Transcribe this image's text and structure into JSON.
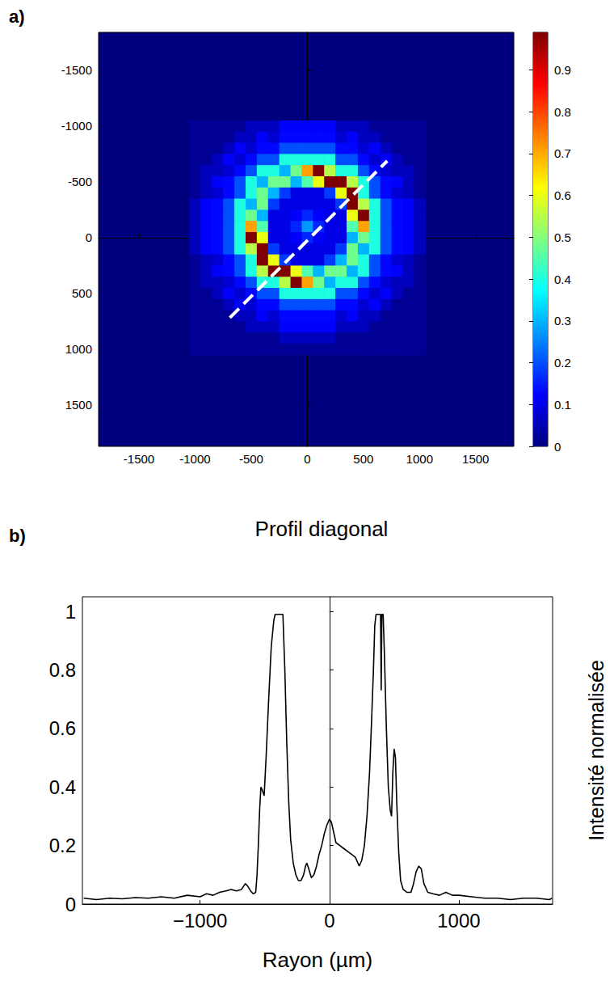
{
  "chart_data": [
    {
      "type": "heatmap",
      "panel": "a)",
      "xlim": [
        -1860,
        1840
      ],
      "ylim": [
        -1840,
        1870
      ],
      "xticks": [
        -1500,
        -1000,
        -500,
        0,
        500,
        1000,
        1500
      ],
      "yticks": [
        -1500,
        -1000,
        -500,
        0,
        500,
        1000,
        1500
      ],
      "x": [
        -1000,
        -900,
        -800,
        -700,
        -600,
        -500,
        -400,
        -300,
        -200,
        -100,
        0,
        100,
        200,
        300,
        400,
        500,
        600,
        700,
        800,
        900,
        1000
      ],
      "y": [
        -1000,
        -900,
        -800,
        -700,
        -600,
        -500,
        -400,
        -300,
        -200,
        -100,
        0,
        100,
        200,
        300,
        400,
        500,
        600,
        700,
        800,
        900,
        1000
      ],
      "values": [
        [
          0.02,
          0.02,
          0.02,
          0.02,
          0.02,
          0.06,
          0.06,
          0.06,
          0.12,
          0.12,
          0.12,
          0.12,
          0.12,
          0.06,
          0.06,
          0.06,
          0.02,
          0.02,
          0.02,
          0.02,
          0.02
        ],
        [
          0.02,
          0.02,
          0.02,
          0.02,
          0.06,
          0.06,
          0.12,
          0.08,
          0.13,
          0.13,
          0.13,
          0.13,
          0.13,
          0.08,
          0.12,
          0.06,
          0.06,
          0.02,
          0.02,
          0.02,
          0.02
        ],
        [
          0.02,
          0.02,
          0.02,
          0.06,
          0.12,
          0.08,
          0.13,
          0.13,
          0.2,
          0.2,
          0.2,
          0.2,
          0.2,
          0.13,
          0.13,
          0.08,
          0.12,
          0.06,
          0.02,
          0.02,
          0.02
        ],
        [
          0.02,
          0.02,
          0.06,
          0.12,
          0.08,
          0.13,
          0.2,
          0.2,
          0.4,
          0.4,
          0.4,
          0.4,
          0.4,
          0.2,
          0.2,
          0.13,
          0.08,
          0.12,
          0.06,
          0.02,
          0.02
        ],
        [
          0.02,
          0.06,
          0.06,
          0.08,
          0.13,
          0.2,
          0.4,
          0.4,
          0.3,
          0.48,
          0.71,
          0.99,
          0.55,
          0.4,
          0.4,
          0.2,
          0.13,
          0.08,
          0.06,
          0.06,
          0.02
        ],
        [
          0.02,
          0.06,
          0.12,
          0.13,
          0.2,
          0.4,
          0.3,
          0.48,
          0.48,
          0.3,
          0.45,
          0.6,
          0.99,
          0.99,
          0.55,
          0.4,
          0.2,
          0.13,
          0.12,
          0.06,
          0.02
        ],
        [
          0.02,
          0.06,
          0.08,
          0.13,
          0.2,
          0.4,
          0.48,
          0.3,
          0.18,
          0.1,
          0.1,
          0.1,
          0.18,
          0.6,
          0.99,
          0.4,
          0.2,
          0.13,
          0.08,
          0.06,
          0.02
        ],
        [
          0.06,
          0.12,
          0.13,
          0.2,
          0.4,
          0.3,
          0.48,
          0.18,
          0.1,
          0.1,
          0.1,
          0.1,
          0.1,
          0.18,
          0.99,
          0.55,
          0.4,
          0.2,
          0.13,
          0.12,
          0.06
        ],
        [
          0.06,
          0.12,
          0.13,
          0.2,
          0.4,
          0.48,
          0.3,
          0.1,
          0.1,
          0.12,
          0.16,
          0.12,
          0.1,
          0.1,
          0.6,
          0.99,
          0.4,
          0.2,
          0.13,
          0.12,
          0.06
        ],
        [
          0.06,
          0.12,
          0.13,
          0.2,
          0.4,
          0.71,
          0.45,
          0.1,
          0.1,
          0.16,
          0.27,
          0.16,
          0.1,
          0.1,
          0.45,
          0.71,
          0.4,
          0.2,
          0.13,
          0.12,
          0.06
        ],
        [
          0.06,
          0.12,
          0.13,
          0.2,
          0.4,
          0.99,
          0.6,
          0.1,
          0.1,
          0.12,
          0.16,
          0.12,
          0.1,
          0.1,
          0.3,
          0.48,
          0.4,
          0.2,
          0.13,
          0.12,
          0.06
        ],
        [
          0.06,
          0.12,
          0.13,
          0.2,
          0.4,
          0.55,
          0.99,
          0.18,
          0.1,
          0.1,
          0.1,
          0.1,
          0.1,
          0.18,
          0.48,
          0.3,
          0.4,
          0.2,
          0.13,
          0.12,
          0.06
        ],
        [
          0.02,
          0.06,
          0.08,
          0.13,
          0.2,
          0.4,
          0.99,
          0.6,
          0.18,
          0.1,
          0.1,
          0.1,
          0.18,
          0.3,
          0.48,
          0.4,
          0.2,
          0.13,
          0.08,
          0.06,
          0.02
        ],
        [
          0.02,
          0.06,
          0.12,
          0.13,
          0.2,
          0.4,
          0.55,
          0.99,
          0.99,
          0.6,
          0.45,
          0.3,
          0.48,
          0.48,
          0.3,
          0.4,
          0.2,
          0.13,
          0.12,
          0.06,
          0.02
        ],
        [
          0.02,
          0.06,
          0.06,
          0.08,
          0.13,
          0.2,
          0.4,
          0.4,
          0.55,
          0.99,
          0.71,
          0.48,
          0.3,
          0.4,
          0.4,
          0.2,
          0.13,
          0.08,
          0.06,
          0.06,
          0.02
        ],
        [
          0.02,
          0.02,
          0.06,
          0.12,
          0.08,
          0.13,
          0.2,
          0.2,
          0.4,
          0.4,
          0.4,
          0.4,
          0.4,
          0.2,
          0.2,
          0.13,
          0.08,
          0.12,
          0.06,
          0.02,
          0.02
        ],
        [
          0.02,
          0.02,
          0.02,
          0.06,
          0.12,
          0.08,
          0.13,
          0.13,
          0.2,
          0.2,
          0.2,
          0.2,
          0.2,
          0.13,
          0.13,
          0.08,
          0.12,
          0.06,
          0.02,
          0.02,
          0.02
        ],
        [
          0.02,
          0.02,
          0.02,
          0.02,
          0.06,
          0.06,
          0.12,
          0.08,
          0.13,
          0.13,
          0.13,
          0.13,
          0.13,
          0.08,
          0.12,
          0.06,
          0.06,
          0.02,
          0.02,
          0.02,
          0.02
        ],
        [
          0.02,
          0.02,
          0.02,
          0.02,
          0.02,
          0.06,
          0.06,
          0.06,
          0.12,
          0.12,
          0.12,
          0.12,
          0.12,
          0.06,
          0.06,
          0.06,
          0.02,
          0.02,
          0.02,
          0.02,
          0.02
        ],
        [
          0.02,
          0.02,
          0.02,
          0.02,
          0.02,
          0.02,
          0.02,
          0.02,
          0.06,
          0.06,
          0.06,
          0.06,
          0.06,
          0.02,
          0.02,
          0.02,
          0.02,
          0.02,
          0.02,
          0.02,
          0.02
        ],
        [
          0.02,
          0.02,
          0.02,
          0.02,
          0.02,
          0.02,
          0.02,
          0.02,
          0.02,
          0.02,
          0.02,
          0.02,
          0.02,
          0.02,
          0.02,
          0.02,
          0.02,
          0.02,
          0.02,
          0.02,
          0.02
        ]
      ],
      "colorbar": {
        "range": [
          0,
          0.99
        ],
        "ticks": [
          0,
          0.1,
          0.2,
          0.3,
          0.4,
          0.5,
          0.6,
          0.7,
          0.8,
          0.9
        ]
      },
      "profile_line": {
        "x": [
          -690,
          712
        ],
        "y": [
          717,
          -688
        ],
        "color": "#ffffff",
        "line_style": "dashed"
      }
    },
    {
      "type": "line",
      "panel": "b)",
      "title": "Profil diagonal",
      "xlabel": "Rayon (µm)",
      "ylabel": "Intensité normalisée",
      "xlim": [
        -1910,
        1725
      ],
      "ylim": [
        0,
        1.05
      ],
      "xticks": [
        {
          "value": -1000,
          "label": "−1000"
        },
        0,
        1000
      ],
      "yticks": [
        0,
        0.2,
        0.4,
        0.6,
        0.8,
        1
      ],
      "color": "#000000",
      "line_style": "solid",
      "x": [
        -1900,
        -1800,
        -1700,
        -1600,
        -1500,
        -1400,
        -1300,
        -1200,
        -1100,
        -1000,
        -950,
        -900,
        -850,
        -800,
        -760,
        -720,
        -680,
        -650,
        -630,
        -610,
        -590,
        -570,
        -560,
        -550,
        -540,
        -530,
        -520,
        -505,
        -490,
        -470,
        -450,
        -430,
        -420,
        -400,
        -380,
        -360,
        -345,
        -330,
        -315,
        -300,
        -280,
        -260,
        -240,
        -220,
        -200,
        -185,
        -175,
        -160,
        -140,
        -120,
        -100,
        -80,
        -60,
        -40,
        -20,
        0,
        15,
        30,
        50,
        80,
        110,
        140,
        170,
        200,
        230,
        250,
        270,
        290,
        310,
        325,
        340,
        350,
        360,
        380,
        395,
        400,
        405,
        415,
        425,
        440,
        455,
        470,
        480,
        490,
        500,
        510,
        520,
        535,
        550,
        570,
        600,
        630,
        650,
        670,
        690,
        710,
        730,
        760,
        800,
        850,
        900,
        950,
        1000,
        1100,
        1200,
        1300,
        1400,
        1500,
        1600,
        1700,
        1720
      ],
      "values": [
        0.02,
        0.015,
        0.02,
        0.018,
        0.022,
        0.02,
        0.025,
        0.02,
        0.03,
        0.025,
        0.035,
        0.03,
        0.04,
        0.045,
        0.05,
        0.045,
        0.05,
        0.07,
        0.06,
        0.045,
        0.035,
        0.04,
        0.1,
        0.2,
        0.32,
        0.4,
        0.39,
        0.37,
        0.5,
        0.7,
        0.88,
        0.97,
        0.99,
        0.99,
        0.99,
        0.99,
        0.8,
        0.55,
        0.35,
        0.22,
        0.14,
        0.1,
        0.08,
        0.08,
        0.1,
        0.13,
        0.14,
        0.12,
        0.09,
        0.1,
        0.13,
        0.17,
        0.2,
        0.24,
        0.27,
        0.29,
        0.28,
        0.25,
        0.21,
        0.2,
        0.19,
        0.18,
        0.17,
        0.16,
        0.13,
        0.15,
        0.2,
        0.3,
        0.45,
        0.62,
        0.8,
        0.95,
        0.99,
        0.99,
        0.99,
        0.73,
        0.99,
        0.99,
        0.85,
        0.6,
        0.4,
        0.32,
        0.3,
        0.45,
        0.53,
        0.5,
        0.35,
        0.18,
        0.08,
        0.05,
        0.04,
        0.04,
        0.07,
        0.11,
        0.13,
        0.12,
        0.07,
        0.04,
        0.035,
        0.03,
        0.04,
        0.03,
        0.03,
        0.025,
        0.02,
        0.02,
        0.015,
        0.02,
        0.02,
        0.015,
        0.02
      ]
    }
  ]
}
